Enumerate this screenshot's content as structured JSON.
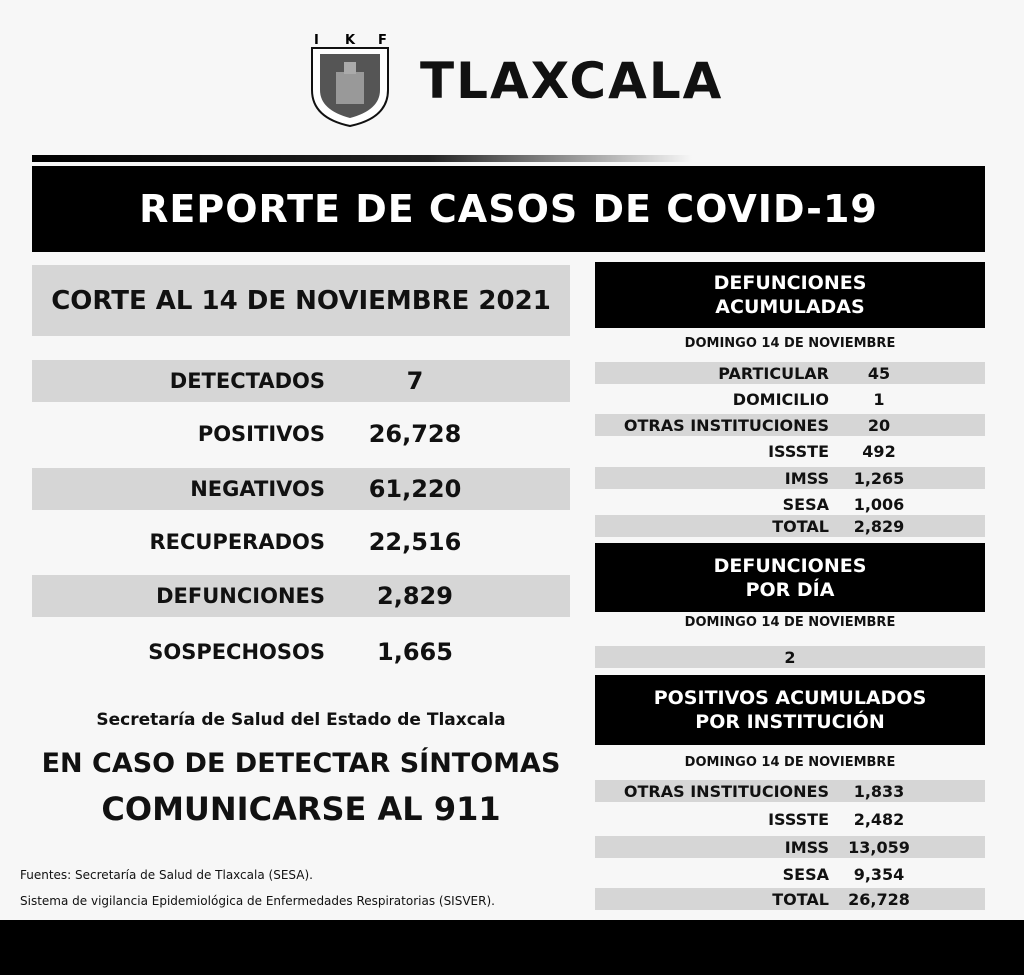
{
  "header": {
    "title": "TLAXCALA",
    "logo_letters": "IKF"
  },
  "banner": "REPORTE DE CASOS DE COVID-19",
  "corte": "CORTE AL 14 DE NOVIEMBRE 2021",
  "stats": [
    {
      "label": "DETECTADOS",
      "value": "7"
    },
    {
      "label": "POSITIVOS",
      "value": "26,728"
    },
    {
      "label": "NEGATIVOS",
      "value": "61,220"
    },
    {
      "label": "RECUPERADOS",
      "value": "22,516"
    },
    {
      "label": "DEFUNCIONES",
      "value": "2,829"
    },
    {
      "label": "SOSPECHOSOS",
      "value": "1,665"
    }
  ],
  "secretaria": "Secretaría de Salud del Estado de Tlaxcala",
  "aviso1": "EN CASO DE DETECTAR SÍNTOMAS",
  "aviso2": "COMUNICARSE AL 911",
  "fuentes1": "Fuentes:  Secretaría de Salud de Tlaxcala (SESA).",
  "fuentes2": "Sistema de vigilancia Epidemiológica de Enfermedades Respiratorias (SISVER).",
  "def_acum": {
    "title1": "DEFUNCIONES",
    "title2": "ACUMULADAS",
    "date": "DOMINGO 14 DE NOVIEMBRE",
    "rows": [
      {
        "label": "PARTICULAR",
        "value": "45"
      },
      {
        "label": "DOMICILIO",
        "value": "1"
      },
      {
        "label": "OTRAS INSTITUCIONES",
        "value": "20"
      },
      {
        "label": "ISSSTE",
        "value": "492"
      },
      {
        "label": "IMSS",
        "value": "1,265"
      },
      {
        "label": "SESA",
        "value": "1,006"
      },
      {
        "label": "TOTAL",
        "value": "2,829"
      }
    ]
  },
  "def_dia": {
    "title1": "DEFUNCIONES",
    "title2": "POR DÍA",
    "date": "DOMINGO 14 DE NOVIEMBRE",
    "value": "2"
  },
  "pos_inst": {
    "title1": "POSITIVOS ACUMULADOS",
    "title2": "POR INSTITUCIÓN",
    "date": "DOMINGO 14 DE NOVIEMBRE",
    "rows": [
      {
        "label": "OTRAS INSTITUCIONES",
        "value": "1,833"
      },
      {
        "label": "ISSSTE",
        "value": "2,482"
      },
      {
        "label": "IMSS",
        "value": "13,059"
      },
      {
        "label": "SESA",
        "value": "9,354"
      },
      {
        "label": "TOTAL",
        "value": "26,728"
      }
    ]
  }
}
